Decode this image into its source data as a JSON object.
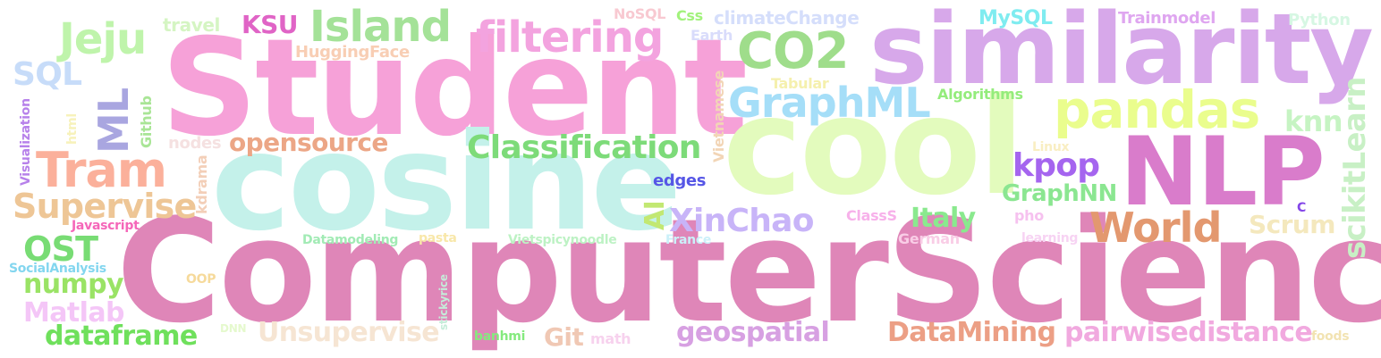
{
  "words": [
    {
      "text": "ComputerScience",
      "color": "#df86b8"
    },
    {
      "text": "Student",
      "color": "#f6a1d8"
    },
    {
      "text": "cosine",
      "color": "#c4f1ea"
    },
    {
      "text": "cool",
      "color": "#e3fbbd"
    },
    {
      "text": "similarity",
      "color": "#d7a8ea"
    },
    {
      "text": "NLP",
      "color": "#d97ccb"
    },
    {
      "text": "Island",
      "color": "#a4e298"
    },
    {
      "text": "filtering",
      "color": "#f3a3df"
    },
    {
      "text": "CO2",
      "color": "#9fdd8b"
    },
    {
      "text": "pandas",
      "color": "#eafd8d"
    },
    {
      "text": "GraphML",
      "color": "#a5def8"
    },
    {
      "text": "Jeju",
      "color": "#bff4ab"
    },
    {
      "text": "Tram",
      "color": "#fbb09b"
    },
    {
      "text": "Supervise",
      "color": "#eec696"
    },
    {
      "text": "Classification",
      "color": "#7ddb79"
    },
    {
      "text": "World",
      "color": "#e3986f"
    },
    {
      "text": "XinChao",
      "color": "#c8b4f8"
    },
    {
      "text": "kpop",
      "color": "#a565ef"
    },
    {
      "text": "scikitLearn",
      "color": "#c8f0c5"
    },
    {
      "text": "OST",
      "color": "#78dc74"
    },
    {
      "text": "numpy",
      "color": "#9ae365"
    },
    {
      "text": "Matlab",
      "color": "#f4c6f7"
    },
    {
      "text": "dataframe",
      "color": "#6fe05c"
    },
    {
      "text": "Unsupervise",
      "color": "#f6e5d3"
    },
    {
      "text": "Git",
      "color": "#f0c8b4"
    },
    {
      "text": "geospatial",
      "color": "#d7a0e2"
    },
    {
      "text": "DataMining",
      "color": "#ec9f85"
    },
    {
      "text": "pairwisedistance",
      "color": "#f1a9df"
    },
    {
      "text": "SQL",
      "color": "#c7dcf9"
    },
    {
      "text": "ML",
      "color": "#a9a6e0"
    },
    {
      "text": "KSU",
      "color": "#e064c6"
    },
    {
      "text": "opensource",
      "color": "#eca686"
    },
    {
      "text": "knn",
      "color": "#c6f4c3"
    },
    {
      "text": "Scrum",
      "color": "#f4e8bd"
    },
    {
      "text": "Italy",
      "color": "#8ae98e"
    },
    {
      "text": "GraphNN",
      "color": "#8be691"
    },
    {
      "text": "AI",
      "color": "#c2e872"
    },
    {
      "text": "travel",
      "color": "#d5f5c3"
    },
    {
      "text": "HuggingFace",
      "color": "#f8ceb4"
    },
    {
      "text": "NoSQL",
      "color": "#f8c9d1"
    },
    {
      "text": "Css",
      "color": "#a2f27c"
    },
    {
      "text": "climateChange",
      "color": "#d5defb"
    },
    {
      "text": "Earth",
      "color": "#d9dcfb"
    },
    {
      "text": "MySQL",
      "color": "#7fecf0"
    },
    {
      "text": "Trainmodel",
      "color": "#dfa6f0"
    },
    {
      "text": "Python",
      "color": "#d6f7e3"
    },
    {
      "text": "Tabular",
      "color": "#f5f0ad"
    },
    {
      "text": "Algorithms",
      "color": "#94ec7c"
    },
    {
      "text": "Vietnamese",
      "color": "#f2d5b6"
    },
    {
      "text": "nodes",
      "color": "#f5e1e1"
    },
    {
      "text": "Github",
      "color": "#a9e596"
    },
    {
      "text": "Visualization",
      "color": "#b781ea"
    },
    {
      "text": "html",
      "color": "#f7f2bb"
    },
    {
      "text": "kdrama",
      "color": "#f3cfb8"
    },
    {
      "text": "edges",
      "color": "#5656e6"
    },
    {
      "text": "Linux",
      "color": "#f9eec2"
    },
    {
      "text": "Javascript",
      "color": "#f567b9"
    },
    {
      "text": "ClassS",
      "color": "#f7b1ea"
    },
    {
      "text": "pho",
      "color": "#f6c1ef"
    },
    {
      "text": "C",
      "color": "#8446e8"
    },
    {
      "text": "Datamodeling",
      "color": "#a2ebb5"
    },
    {
      "text": "pasta",
      "color": "#f8e7a9"
    },
    {
      "text": "Vietspicynoodle",
      "color": "#bdf2c4"
    },
    {
      "text": "France",
      "color": "#cbf0f9"
    },
    {
      "text": "German",
      "color": "#f9cde6"
    },
    {
      "text": "learning",
      "color": "#f7d3f3"
    },
    {
      "text": "SocialAnalysis",
      "color": "#83d6ef"
    },
    {
      "text": "OOP",
      "color": "#f6da9b"
    },
    {
      "text": "DNN",
      "color": "#e5f9cd"
    },
    {
      "text": "stickyrice",
      "color": "#c5ecd9"
    },
    {
      "text": "banhmi",
      "color": "#85ea7e"
    },
    {
      "text": "math",
      "color": "#f7d2ee"
    },
    {
      "text": "foods",
      "color": "#f2e3b2"
    }
  ]
}
